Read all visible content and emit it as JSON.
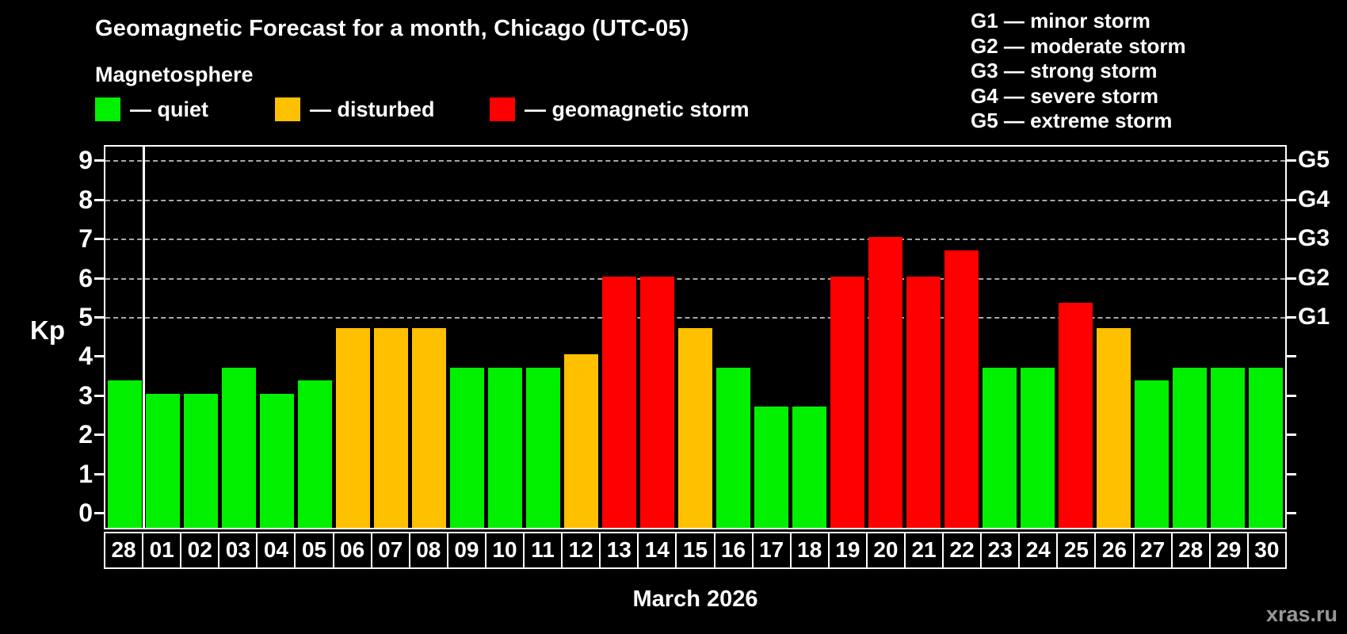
{
  "header": {
    "title": "Geomagnetic Forecast for a month, Chicago (UTC-05)",
    "subtitle": "Magnetosphere"
  },
  "status_legend": [
    {
      "key": "quiet",
      "label": "— quiet"
    },
    {
      "key": "disturbed",
      "label": "— disturbed"
    },
    {
      "key": "storm",
      "label": "— geomagnetic storm"
    }
  ],
  "g_legend": [
    "G1 — minor storm",
    "G2 — moderate storm",
    "G3 — strong storm",
    "G4 — severe storm",
    "G5 — extreme storm"
  ],
  "chart_data": {
    "type": "bar",
    "title": "Geomagnetic Forecast for a month, Chicago (UTC-05)",
    "ylabel": "Kp",
    "xlabel": "March 2026",
    "ylim": [
      0,
      9.4
    ],
    "yticks": [
      0,
      1,
      2,
      3,
      4,
      5,
      6,
      7,
      8,
      9
    ],
    "grid": "horizontal dashed lines at Kp 5-9 only",
    "legend_position": "top",
    "right_axis": [
      {
        "label": "G1",
        "kp": 5
      },
      {
        "label": "G2",
        "kp": 6
      },
      {
        "label": "G3",
        "kp": 7
      },
      {
        "label": "G4",
        "kp": 8
      },
      {
        "label": "G5",
        "kp": 9
      }
    ],
    "categories": [
      "28",
      "01",
      "02",
      "03",
      "04",
      "05",
      "06",
      "07",
      "08",
      "09",
      "10",
      "11",
      "12",
      "13",
      "14",
      "15",
      "16",
      "17",
      "18",
      "19",
      "20",
      "21",
      "22",
      "23",
      "24",
      "25",
      "26",
      "27",
      "28",
      "29",
      "30"
    ],
    "values": [
      3.33,
      3.0,
      3.0,
      3.67,
      3.0,
      3.33,
      4.67,
      4.67,
      4.67,
      3.67,
      3.67,
      3.67,
      4.0,
      6.0,
      6.0,
      4.67,
      3.67,
      2.67,
      2.67,
      6.0,
      7.0,
      6.0,
      6.67,
      3.67,
      3.67,
      5.33,
      4.67,
      3.33,
      3.67,
      3.67,
      3.67
    ],
    "statuses": [
      "quiet",
      "quiet",
      "quiet",
      "quiet",
      "quiet",
      "quiet",
      "disturbed",
      "disturbed",
      "disturbed",
      "quiet",
      "quiet",
      "quiet",
      "disturbed",
      "storm",
      "storm",
      "disturbed",
      "quiet",
      "quiet",
      "quiet",
      "storm",
      "storm",
      "storm",
      "storm",
      "quiet",
      "quiet",
      "storm",
      "disturbed",
      "quiet",
      "quiet",
      "quiet",
      "quiet"
    ],
    "colors": {
      "quiet": "#00f000",
      "disturbed": "#ffc000",
      "storm": "#ff0000"
    },
    "prev_month_separator_after_index": 0
  },
  "footer": {
    "watermark": "xras.ru"
  }
}
